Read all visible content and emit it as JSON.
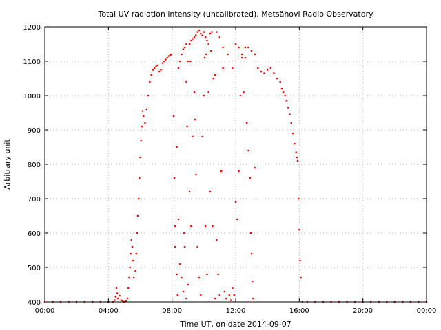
{
  "chart_data": {
    "type": "scatter",
    "title": "Total UV radiation intensity (uncalibrated). Metsähovi Radio Observatory",
    "xlabel": "Time UT, on date 2014-09-07",
    "ylabel": "Arbitrary unit",
    "xlim": [
      0,
      24
    ],
    "ylim": [
      400,
      1200
    ],
    "x_ticks": [
      {
        "value": 0,
        "label": "00:00"
      },
      {
        "value": 4,
        "label": "04:00"
      },
      {
        "value": 8,
        "label": "08:00"
      },
      {
        "value": 12,
        "label": "12:00"
      },
      {
        "value": 16,
        "label": "16:00"
      },
      {
        "value": 20,
        "label": "20:00"
      },
      {
        "value": 24,
        "label": "00:00"
      }
    ],
    "y_ticks": [
      {
        "value": 400,
        "label": "400"
      },
      {
        "value": 500,
        "label": "500"
      },
      {
        "value": 600,
        "label": "600"
      },
      {
        "value": 700,
        "label": "700"
      },
      {
        "value": 800,
        "label": "800"
      },
      {
        "value": 900,
        "label": "900"
      },
      {
        "value": 1000,
        "label": "1000"
      },
      {
        "value": 1100,
        "label": "1100"
      },
      {
        "value": 1200,
        "label": "1200"
      }
    ],
    "grid": true,
    "marker_color": "#ff0000",
    "series": [
      {
        "points": [
          [
            0,
            400
          ],
          [
            0.5,
            400
          ],
          [
            1,
            400
          ],
          [
            1.5,
            400
          ],
          [
            2,
            400
          ],
          [
            2.5,
            400
          ],
          [
            3,
            400
          ],
          [
            3.5,
            400
          ],
          [
            4,
            400
          ],
          [
            4.3,
            400
          ],
          [
            4.4,
            405
          ],
          [
            4.45,
            415
          ],
          [
            4.5,
            440
          ],
          [
            4.55,
            425
          ],
          [
            4.6,
            410
          ],
          [
            4.7,
            418
          ],
          [
            4.8,
            405
          ],
          [
            4.9,
            402
          ],
          [
            5.0,
            400
          ],
          [
            5.1,
            402
          ],
          [
            5.2,
            410
          ],
          [
            5.25,
            440
          ],
          [
            5.3,
            470
          ],
          [
            5.35,
            500
          ],
          [
            5.4,
            540
          ],
          [
            5.45,
            580
          ],
          [
            5.5,
            560
          ],
          [
            5.55,
            520
          ],
          [
            5.6,
            470
          ],
          [
            5.7,
            490
          ],
          [
            5.75,
            540
          ],
          [
            5.8,
            600
          ],
          [
            5.85,
            650
          ],
          [
            5.9,
            700
          ],
          [
            5.95,
            760
          ],
          [
            6.0,
            820
          ],
          [
            6.05,
            870
          ],
          [
            6.1,
            910
          ],
          [
            6.15,
            955
          ],
          [
            6.2,
            940
          ],
          [
            6.3,
            920
          ],
          [
            6.4,
            960
          ],
          [
            6.5,
            1000
          ],
          [
            6.6,
            1040
          ],
          [
            6.7,
            1060
          ],
          [
            6.8,
            1075
          ],
          [
            6.9,
            1080
          ],
          [
            7.0,
            1085
          ],
          [
            7.1,
            1088
          ],
          [
            7.2,
            1070
          ],
          [
            7.3,
            1075
          ],
          [
            7.4,
            1095
          ],
          [
            7.5,
            1100
          ],
          [
            7.6,
            1105
          ],
          [
            7.7,
            1110
          ],
          [
            7.8,
            1115
          ],
          [
            7.9,
            1118
          ],
          [
            7.95,
            1120
          ],
          [
            8.1,
            940
          ],
          [
            8.15,
            760
          ],
          [
            8.2,
            620
          ],
          [
            8.3,
            850
          ],
          [
            8.4,
            1080
          ],
          [
            8.5,
            1100
          ],
          [
            8.6,
            1120
          ],
          [
            8.7,
            1135
          ],
          [
            8.8,
            1140
          ],
          [
            8.9,
            1150
          ],
          [
            9.0,
            1100
          ],
          [
            9.1,
            1150
          ],
          [
            9.2,
            1160
          ],
          [
            9.3,
            1165
          ],
          [
            9.4,
            1170
          ],
          [
            9.5,
            1175
          ],
          [
            9.6,
            1185
          ],
          [
            9.7,
            1190
          ],
          [
            9.8,
            1180
          ],
          [
            9.9,
            1175
          ],
          [
            10.0,
            1185
          ],
          [
            10.1,
            1170
          ],
          [
            10.2,
            1160
          ],
          [
            10.3,
            1150
          ],
          [
            10.4,
            1180
          ],
          [
            10.5,
            1185
          ],
          [
            10.6,
            1050
          ],
          [
            10.7,
            1060
          ],
          [
            10.8,
            1185
          ],
          [
            11.0,
            1170
          ],
          [
            11.2,
            1140
          ],
          [
            11.5,
            1120
          ],
          [
            11.8,
            1080
          ],
          [
            12.0,
            1150
          ],
          [
            12.2,
            1140
          ],
          [
            12.4,
            1120
          ],
          [
            12.6,
            1110
          ],
          [
            12.8,
            1140
          ],
          [
            13.0,
            1130
          ],
          [
            13.2,
            1120
          ],
          [
            13.4,
            1080
          ],
          [
            13.6,
            1070
          ],
          [
            13.8,
            1065
          ],
          [
            14.0,
            1075
          ],
          [
            14.2,
            1080
          ],
          [
            14.4,
            1065
          ],
          [
            14.6,
            1050
          ],
          [
            14.8,
            1040
          ],
          [
            14.9,
            1020
          ],
          [
            15.0,
            1010
          ],
          [
            15.1,
            1000
          ],
          [
            15.2,
            985
          ],
          [
            15.3,
            965
          ],
          [
            15.4,
            945
          ],
          [
            15.5,
            920
          ],
          [
            15.6,
            890
          ],
          [
            15.7,
            860
          ],
          [
            15.8,
            835
          ],
          [
            15.85,
            820
          ],
          [
            15.9,
            810
          ],
          [
            15.95,
            700
          ],
          [
            16.0,
            610
          ],
          [
            16.05,
            520
          ],
          [
            16.1,
            470
          ],
          [
            16.2,
            400
          ],
          [
            16.5,
            400
          ],
          [
            17,
            400
          ],
          [
            17.5,
            400
          ],
          [
            18,
            400
          ],
          [
            18.5,
            400
          ],
          [
            19,
            400
          ],
          [
            19.5,
            400
          ],
          [
            20,
            400
          ],
          [
            20.5,
            400
          ],
          [
            21,
            400
          ],
          [
            21.5,
            400
          ],
          [
            22,
            400
          ],
          [
            22.5,
            400
          ],
          [
            23,
            400
          ],
          [
            23.5,
            400
          ],
          [
            24,
            400
          ],
          [
            8.2,
            560
          ],
          [
            8.3,
            480
          ],
          [
            8.35,
            420
          ],
          [
            8.4,
            640
          ],
          [
            8.5,
            510
          ],
          [
            8.6,
            470
          ],
          [
            8.7,
            430
          ],
          [
            8.75,
            600
          ],
          [
            8.8,
            560
          ],
          [
            8.9,
            410
          ],
          [
            9.0,
            450
          ],
          [
            9.1,
            720
          ],
          [
            9.2,
            620
          ],
          [
            9.3,
            880
          ],
          [
            9.4,
            1010
          ],
          [
            9.45,
            930
          ],
          [
            9.5,
            770
          ],
          [
            9.6,
            560
          ],
          [
            9.7,
            470
          ],
          [
            9.8,
            420
          ],
          [
            9.9,
            880
          ],
          [
            10.0,
            1000
          ],
          [
            10.1,
            620
          ],
          [
            10.2,
            480
          ],
          [
            10.3,
            1010
          ],
          [
            10.4,
            720
          ],
          [
            10.45,
            1130
          ],
          [
            10.55,
            620
          ],
          [
            10.7,
            410
          ],
          [
            10.8,
            580
          ],
          [
            10.9,
            480
          ],
          [
            11.0,
            420
          ],
          [
            11.1,
            780
          ],
          [
            11.3,
            430
          ],
          [
            11.4,
            410
          ],
          [
            11.6,
            420
          ],
          [
            11.7,
            405
          ],
          [
            11.8,
            440
          ],
          [
            11.9,
            420
          ],
          [
            12.0,
            690
          ],
          [
            12.1,
            640
          ],
          [
            12.2,
            780
          ],
          [
            12.3,
            1000
          ],
          [
            12.4,
            1110
          ],
          [
            12.5,
            1010
          ],
          [
            12.6,
            1140
          ],
          [
            12.7,
            920
          ],
          [
            12.8,
            840
          ],
          [
            12.9,
            760
          ],
          [
            12.95,
            600
          ],
          [
            13.0,
            540
          ],
          [
            13.05,
            460
          ],
          [
            13.1,
            410
          ],
          [
            13.2,
            790
          ],
          [
            10.05,
            1110
          ],
          [
            10.15,
            1120
          ],
          [
            9.15,
            1100
          ],
          [
            8.9,
            1040
          ],
          [
            8.95,
            910
          ],
          [
            11.2,
            1080
          ]
        ]
      }
    ]
  }
}
